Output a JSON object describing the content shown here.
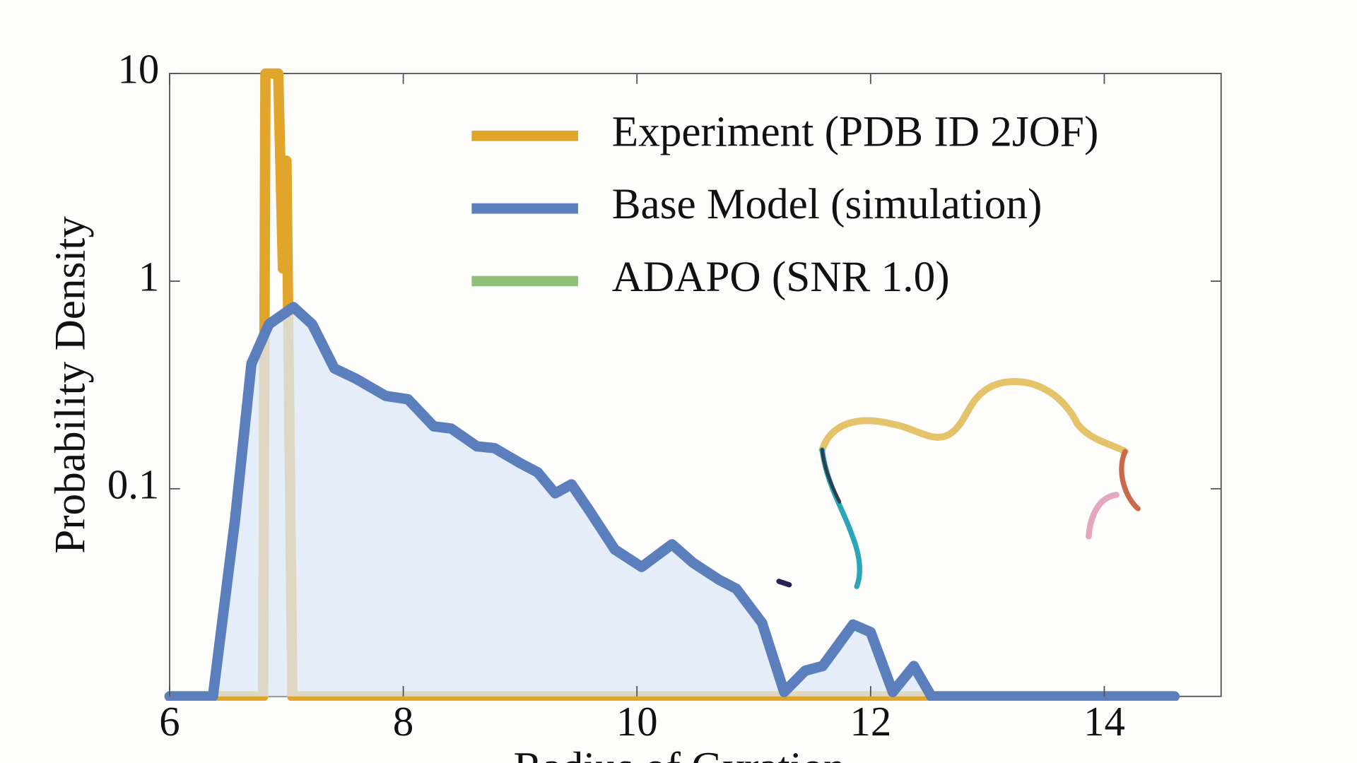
{
  "chart_data": {
    "type": "line",
    "x_label": "Radius of Gyration",
    "y_label": "Probability Density",
    "xlim": [
      6,
      15
    ],
    "ylim": [
      0.01,
      10
    ],
    "xticks": [
      6,
      8,
      10,
      12,
      14
    ],
    "yticks": [
      0.1,
      1,
      10
    ],
    "y_log": true,
    "legend": "upper right",
    "series": [
      {
        "name": "Experiment (PDB ID 2JOF)",
        "color": "#e0a52a",
        "x": [
          6,
          6.8,
          6.82,
          6.93,
          6.97,
          7.0,
          7.05,
          14.6
        ],
        "values": [
          0.01,
          0.01,
          10,
          10,
          1.15,
          3.8,
          0.01,
          0.01
        ]
      },
      {
        "name": "Base Model (simulation)",
        "color": "#5b7fbd",
        "fill": "#dce8f7",
        "x": [
          6,
          6.37,
          6.56,
          6.7,
          6.85,
          7.06,
          7.22,
          7.41,
          7.59,
          7.85,
          8.04,
          8.26,
          8.41,
          8.63,
          8.78,
          9.0,
          9.15,
          9.3,
          9.44,
          9.59,
          9.81,
          10.04,
          10.3,
          10.48,
          10.7,
          10.85,
          11.07,
          11.26,
          11.44,
          11.59,
          11.85,
          12.0,
          12.19,
          12.37,
          12.52,
          14.6
        ],
        "values": [
          0.01,
          0.01,
          0.071,
          0.4,
          0.62,
          0.75,
          0.62,
          0.38,
          0.34,
          0.28,
          0.27,
          0.2,
          0.195,
          0.16,
          0.157,
          0.133,
          0.12,
          0.095,
          0.105,
          0.079,
          0.051,
          0.042,
          0.054,
          0.044,
          0.0365,
          0.033,
          0.0226,
          0.0105,
          0.0133,
          0.014,
          0.0222,
          0.0204,
          0.0105,
          0.014,
          0.01,
          0.01
        ]
      },
      {
        "name": "ADAPO (SNR 1.0)",
        "color": "#8fbf78",
        "x": [],
        "values": []
      }
    ]
  }
}
